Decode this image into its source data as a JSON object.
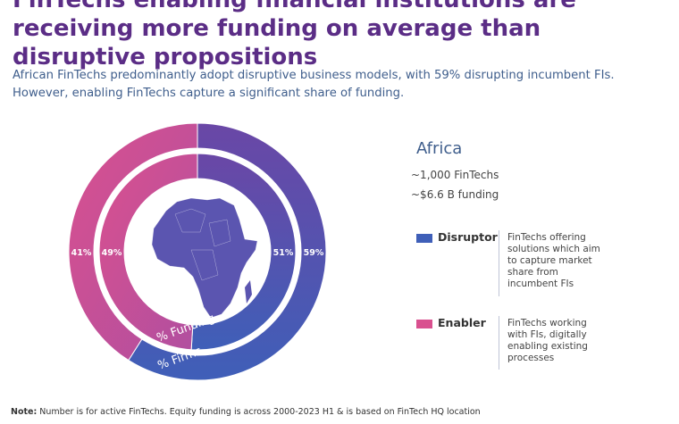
{
  "header": {
    "title": "FinTechs enabling financial institutions are receiving more funding on average than disruptive propositions",
    "subtitle": "African FinTechs predominantly adopt disruptive business models, with 59% disrupting incumbent FIs. However, enabling FinTechs capture a significant share of funding."
  },
  "summary": {
    "region": "Africa",
    "fintech_count": "~1,000 FinTechs",
    "funding_total": "~$6.6 B funding"
  },
  "legend": [
    {
      "name": "Disruptor",
      "description": "FinTechs offering solutions which aim to capture market share from incumbent FIs",
      "color": "#3f5fb8"
    },
    {
      "name": "Enabler",
      "description": "FinTechs working with FIs, digitally enabling existing processes",
      "color": "#d9508f"
    }
  ],
  "note": {
    "label": "Note:",
    "text": "Number is for active FinTechs. Equity funding is across 2000-2023 H1 & is based on FinTech HQ location"
  },
  "chart_data": {
    "type": "pie",
    "rings": [
      {
        "name": "% Firms",
        "position": "outer",
        "slices": [
          {
            "label": "Disruptor",
            "value": 59,
            "text": "59%"
          },
          {
            "label": "Enabler",
            "value": 41,
            "text": "41%"
          }
        ]
      },
      {
        "name": "% Funding",
        "position": "inner",
        "slices": [
          {
            "label": "Disruptor",
            "value": 51,
            "text": "51%"
          },
          {
            "label": "Enabler",
            "value": 49,
            "text": "49%"
          }
        ]
      }
    ],
    "colors": {
      "disruptor": "#3f5fb8",
      "disruptor_end": "#6a47a6",
      "enabler": "#d9508f",
      "enabler_end": "#b04fa0"
    }
  }
}
